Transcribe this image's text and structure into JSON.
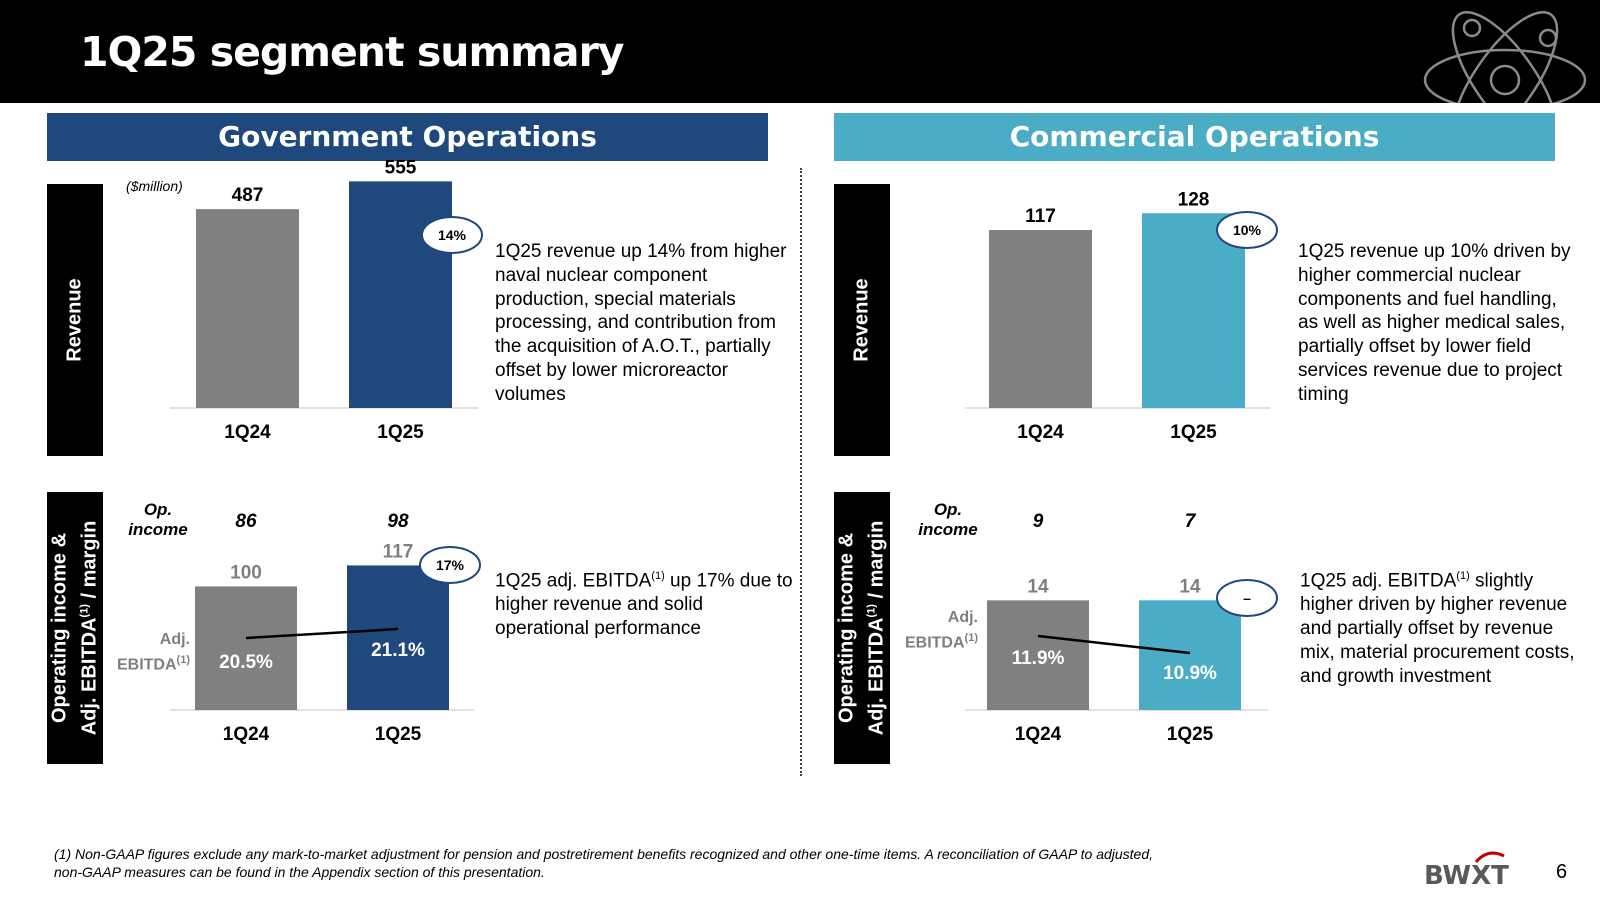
{
  "page": {
    "title": "1Q25 segment summary",
    "page_number": "6",
    "footnote": "(1) Non-GAAP figures exclude any mark-to-market adjustment for pension and postretirement benefits recognized and other one-time items.  A reconciliation of GAAP to adjusted, non-GAAP measures can be found in the Appendix section of this presentation.",
    "logo_text": "BWXT",
    "colors": {
      "header": "#000000",
      "gov": "#1f497d",
      "com": "#4bacc6",
      "prior": "#808080"
    }
  },
  "labels": {
    "revenue": "Revenue",
    "opinc_line1": "Operating income &",
    "opinc_line2_a": "Adj. EBITDA",
    "opinc_line2_sup": "(1)",
    "opinc_line2_b": " / margin",
    "unit": "($million)",
    "op_income_1": "Op.",
    "op_income_2": "income",
    "adj_1": "Adj.",
    "adj_2": "EBITDA",
    "adj_sup": "(1)"
  },
  "gov": {
    "banner": "Government Operations",
    "revenue_comment": "1Q25 revenue up 14% from higher naval nuclear component production, special materials processing, and contribution from the acquisition of A.O.T., partially offset by lower microreactor volumes",
    "ebitda_comment_a": "1Q25 adj. EBITDA",
    "ebitda_comment_sup": "(1)",
    "ebitda_comment_b": " up 17% due to higher revenue and solid operational performance"
  },
  "com": {
    "banner": "Commercial Operations",
    "revenue_comment": "1Q25 revenue up 10% driven by higher commercial nuclear components and fuel handling, as well as higher medical sales, partially offset by lower field services revenue due to project timing",
    "ebitda_comment_a": "1Q25 adj. EBITDA",
    "ebitda_comment_sup": "(1)",
    "ebitda_comment_b": " slightly higher driven by higher revenue and partially offset by revenue mix, material procurement costs, and growth investment"
  },
  "chart_data": [
    {
      "type": "bar",
      "segment": "Government Operations",
      "categories": [
        "1Q24",
        "1Q25"
      ],
      "values": [
        487,
        555
      ],
      "value_labels": [
        "487",
        "555"
      ],
      "growth_badge": "14%",
      "ylabel": "Revenue",
      "unit": "($million)",
      "ylim": [
        0,
        600
      ]
    },
    {
      "type": "bar",
      "segment": "Commercial Operations",
      "categories": [
        "1Q24",
        "1Q25"
      ],
      "values": [
        117,
        128
      ],
      "value_labels": [
        "117",
        "128"
      ],
      "growth_badge": "10%",
      "ylabel": "Revenue",
      "ylim": [
        0,
        140
      ]
    },
    {
      "type": "bar",
      "segment": "Government Operations",
      "categories": [
        "1Q24",
        "1Q25"
      ],
      "values": [
        100,
        117
      ],
      "value_labels": [
        "100",
        "117"
      ],
      "margins": [
        20.5,
        21.1
      ],
      "margin_labels": [
        "20.5%",
        "21.1%"
      ],
      "op_income": [
        "86",
        "98"
      ],
      "growth_badge": "17%",
      "ylim": [
        0,
        140
      ]
    },
    {
      "type": "bar",
      "segment": "Commercial Operations",
      "categories": [
        "1Q24",
        "1Q25"
      ],
      "values": [
        14,
        14
      ],
      "value_labels": [
        "14",
        "14"
      ],
      "margins": [
        11.9,
        10.9
      ],
      "margin_labels": [
        "11.9%",
        "10.9%"
      ],
      "op_income": [
        "9",
        "7"
      ],
      "growth_badge": "–",
      "ylim": [
        0,
        18
      ]
    }
  ]
}
